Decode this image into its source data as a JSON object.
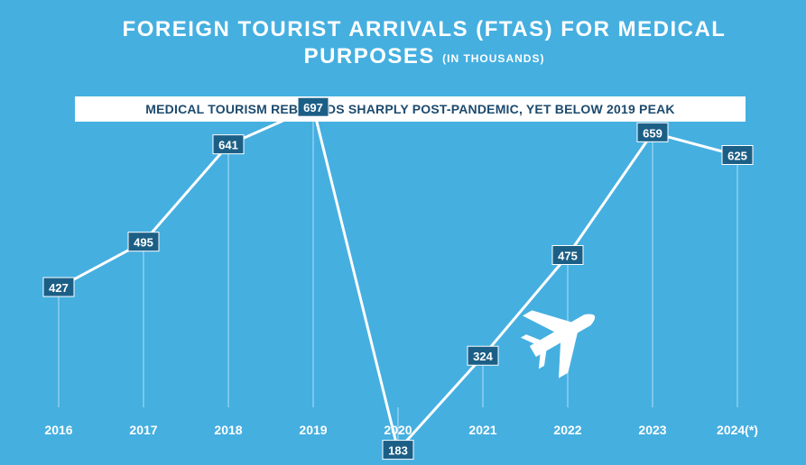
{
  "title": {
    "main": "FOREIGN TOURIST ARRIVALS (FTAS) FOR MEDICAL PURPOSES",
    "unit": "(IN THOUSANDS)"
  },
  "subtitle": "MEDICAL TOURISM REBOUNDS SHARPLY POST-PANDEMIC, YET BELOW 2019 PEAK",
  "colors": {
    "background": "#45afe0",
    "line": "#ffffff",
    "label_box": "#1c5f86",
    "label_text": "#ffffff"
  },
  "icon": "airplane-icon",
  "chart_data": {
    "type": "line",
    "title": "FOREIGN TOURIST ARRIVALS (FTAS) FOR MEDICAL PURPOSES",
    "categories": [
      "2016",
      "2017",
      "2018",
      "2019",
      "2020",
      "2021",
      "2022",
      "2023",
      "2024(*)"
    ],
    "series": [
      {
        "values": [
          427,
          495,
          641,
          697,
          183,
          324,
          475,
          659,
          625
        ]
      }
    ],
    "data_labels": true,
    "grid": false,
    "legend": "none"
  }
}
